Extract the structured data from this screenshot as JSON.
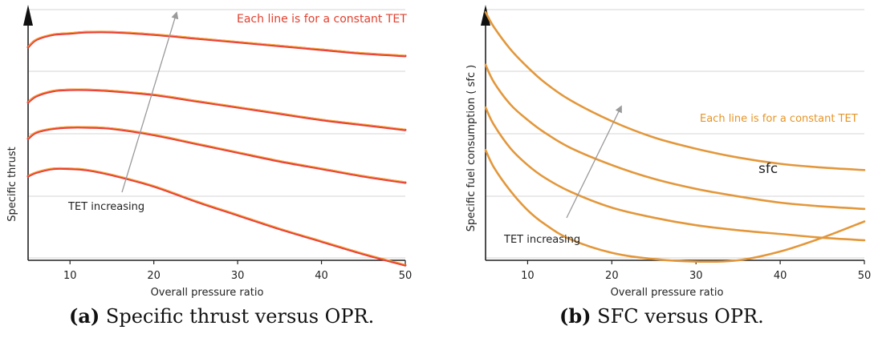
{
  "chart_data": [
    {
      "type": "line",
      "id": "a",
      "caption_prefix": "(a)",
      "caption_text": "Specific thrust versus OPR.",
      "xlabel": "Overall pressure ratio",
      "ylabel": "Specific thrust",
      "xlim": [
        5,
        50
      ],
      "ylim": [
        0,
        100
      ],
      "x_ticks": [
        "10",
        "20",
        "30",
        "40",
        "50"
      ],
      "x_tick_values": [
        10,
        20,
        30,
        40,
        50
      ],
      "grid": true,
      "annotation_top": "Each line is for a constant TET",
      "annotation_arrow": "TET increasing",
      "line_color": "#e8403a",
      "highlight_color": "#f2b230",
      "series": [
        {
          "x": [
            5,
            6,
            8,
            10,
            12,
            15,
            20,
            25,
            30,
            35,
            40,
            45,
            50
          ],
          "y": [
            85,
            88,
            90,
            90.5,
            91,
            91,
            90,
            88.5,
            87,
            85.5,
            84,
            82.5,
            81.5
          ]
        },
        {
          "x": [
            5,
            6,
            8,
            10,
            12,
            15,
            20,
            25,
            30,
            35,
            40,
            45,
            50
          ],
          "y": [
            63,
            65.5,
            67.5,
            68,
            68,
            67.5,
            66,
            63.5,
            61,
            58.5,
            56,
            54,
            52
          ]
        },
        {
          "x": [
            5,
            6,
            8,
            10,
            12,
            15,
            20,
            25,
            30,
            35,
            40,
            45,
            50
          ],
          "y": [
            48.5,
            51,
            52.5,
            53,
            53,
            52.5,
            50,
            46.5,
            43,
            39.5,
            36.5,
            33.5,
            31
          ]
        },
        {
          "x": [
            5,
            6,
            8,
            10,
            12,
            15,
            20,
            25,
            30,
            35,
            40,
            45,
            50
          ],
          "y": [
            33.5,
            35,
            36.5,
            36.5,
            36,
            34,
            29.5,
            23.5,
            18,
            12.5,
            7.5,
            2.5,
            -2
          ]
        }
      ]
    },
    {
      "type": "line",
      "id": "b",
      "caption_prefix": "(b)",
      "caption_text": "SFC versus OPR.",
      "xlabel": "Overall pressure ratio",
      "ylabel": "Specific fuel consumption ( sfc )",
      "xlim": [
        5,
        50
      ],
      "ylim": [
        0,
        100
      ],
      "x_ticks": [
        "10",
        "20",
        "30",
        "40",
        "50"
      ],
      "x_tick_values": [
        10,
        20,
        30,
        40,
        50
      ],
      "grid": true,
      "annotation_top": "Each line is for a constant TET",
      "annotation_arrow": "TET increasing",
      "annotation_curve": "sfc",
      "line_color": "#e3973a",
      "highlight_color": "#e3973a",
      "series": [
        {
          "x": [
            5,
            6,
            8,
            10,
            12,
            15,
            20,
            25,
            30,
            35,
            40,
            45,
            50
          ],
          "y": [
            99,
            93,
            84,
            77,
            71,
            64,
            55.5,
            49,
            44.5,
            41,
            38.5,
            37,
            36
          ]
        },
        {
          "x": [
            5,
            6,
            8,
            10,
            12,
            15,
            20,
            25,
            30,
            35,
            40,
            45,
            50
          ],
          "y": [
            78,
            71,
            62,
            56,
            51,
            45,
            38,
            32.5,
            28.5,
            25.5,
            23,
            21.5,
            20.5
          ]
        },
        {
          "x": [
            5,
            6,
            8,
            10,
            12,
            15,
            20,
            25,
            30,
            35,
            40,
            45,
            50
          ],
          "y": [
            61,
            54,
            44.5,
            38,
            33,
            27.5,
            21,
            17,
            14,
            12,
            10.5,
            9,
            8
          ]
        },
        {
          "x": [
            5,
            6,
            8,
            10,
            12,
            15,
            20,
            25,
            30,
            35,
            40,
            45,
            50
          ],
          "y": [
            44,
            37,
            27.5,
            20,
            14.5,
            8.5,
            3,
            0.5,
            -0.5,
            0,
            3.5,
            9,
            15.5
          ]
        }
      ]
    }
  ]
}
